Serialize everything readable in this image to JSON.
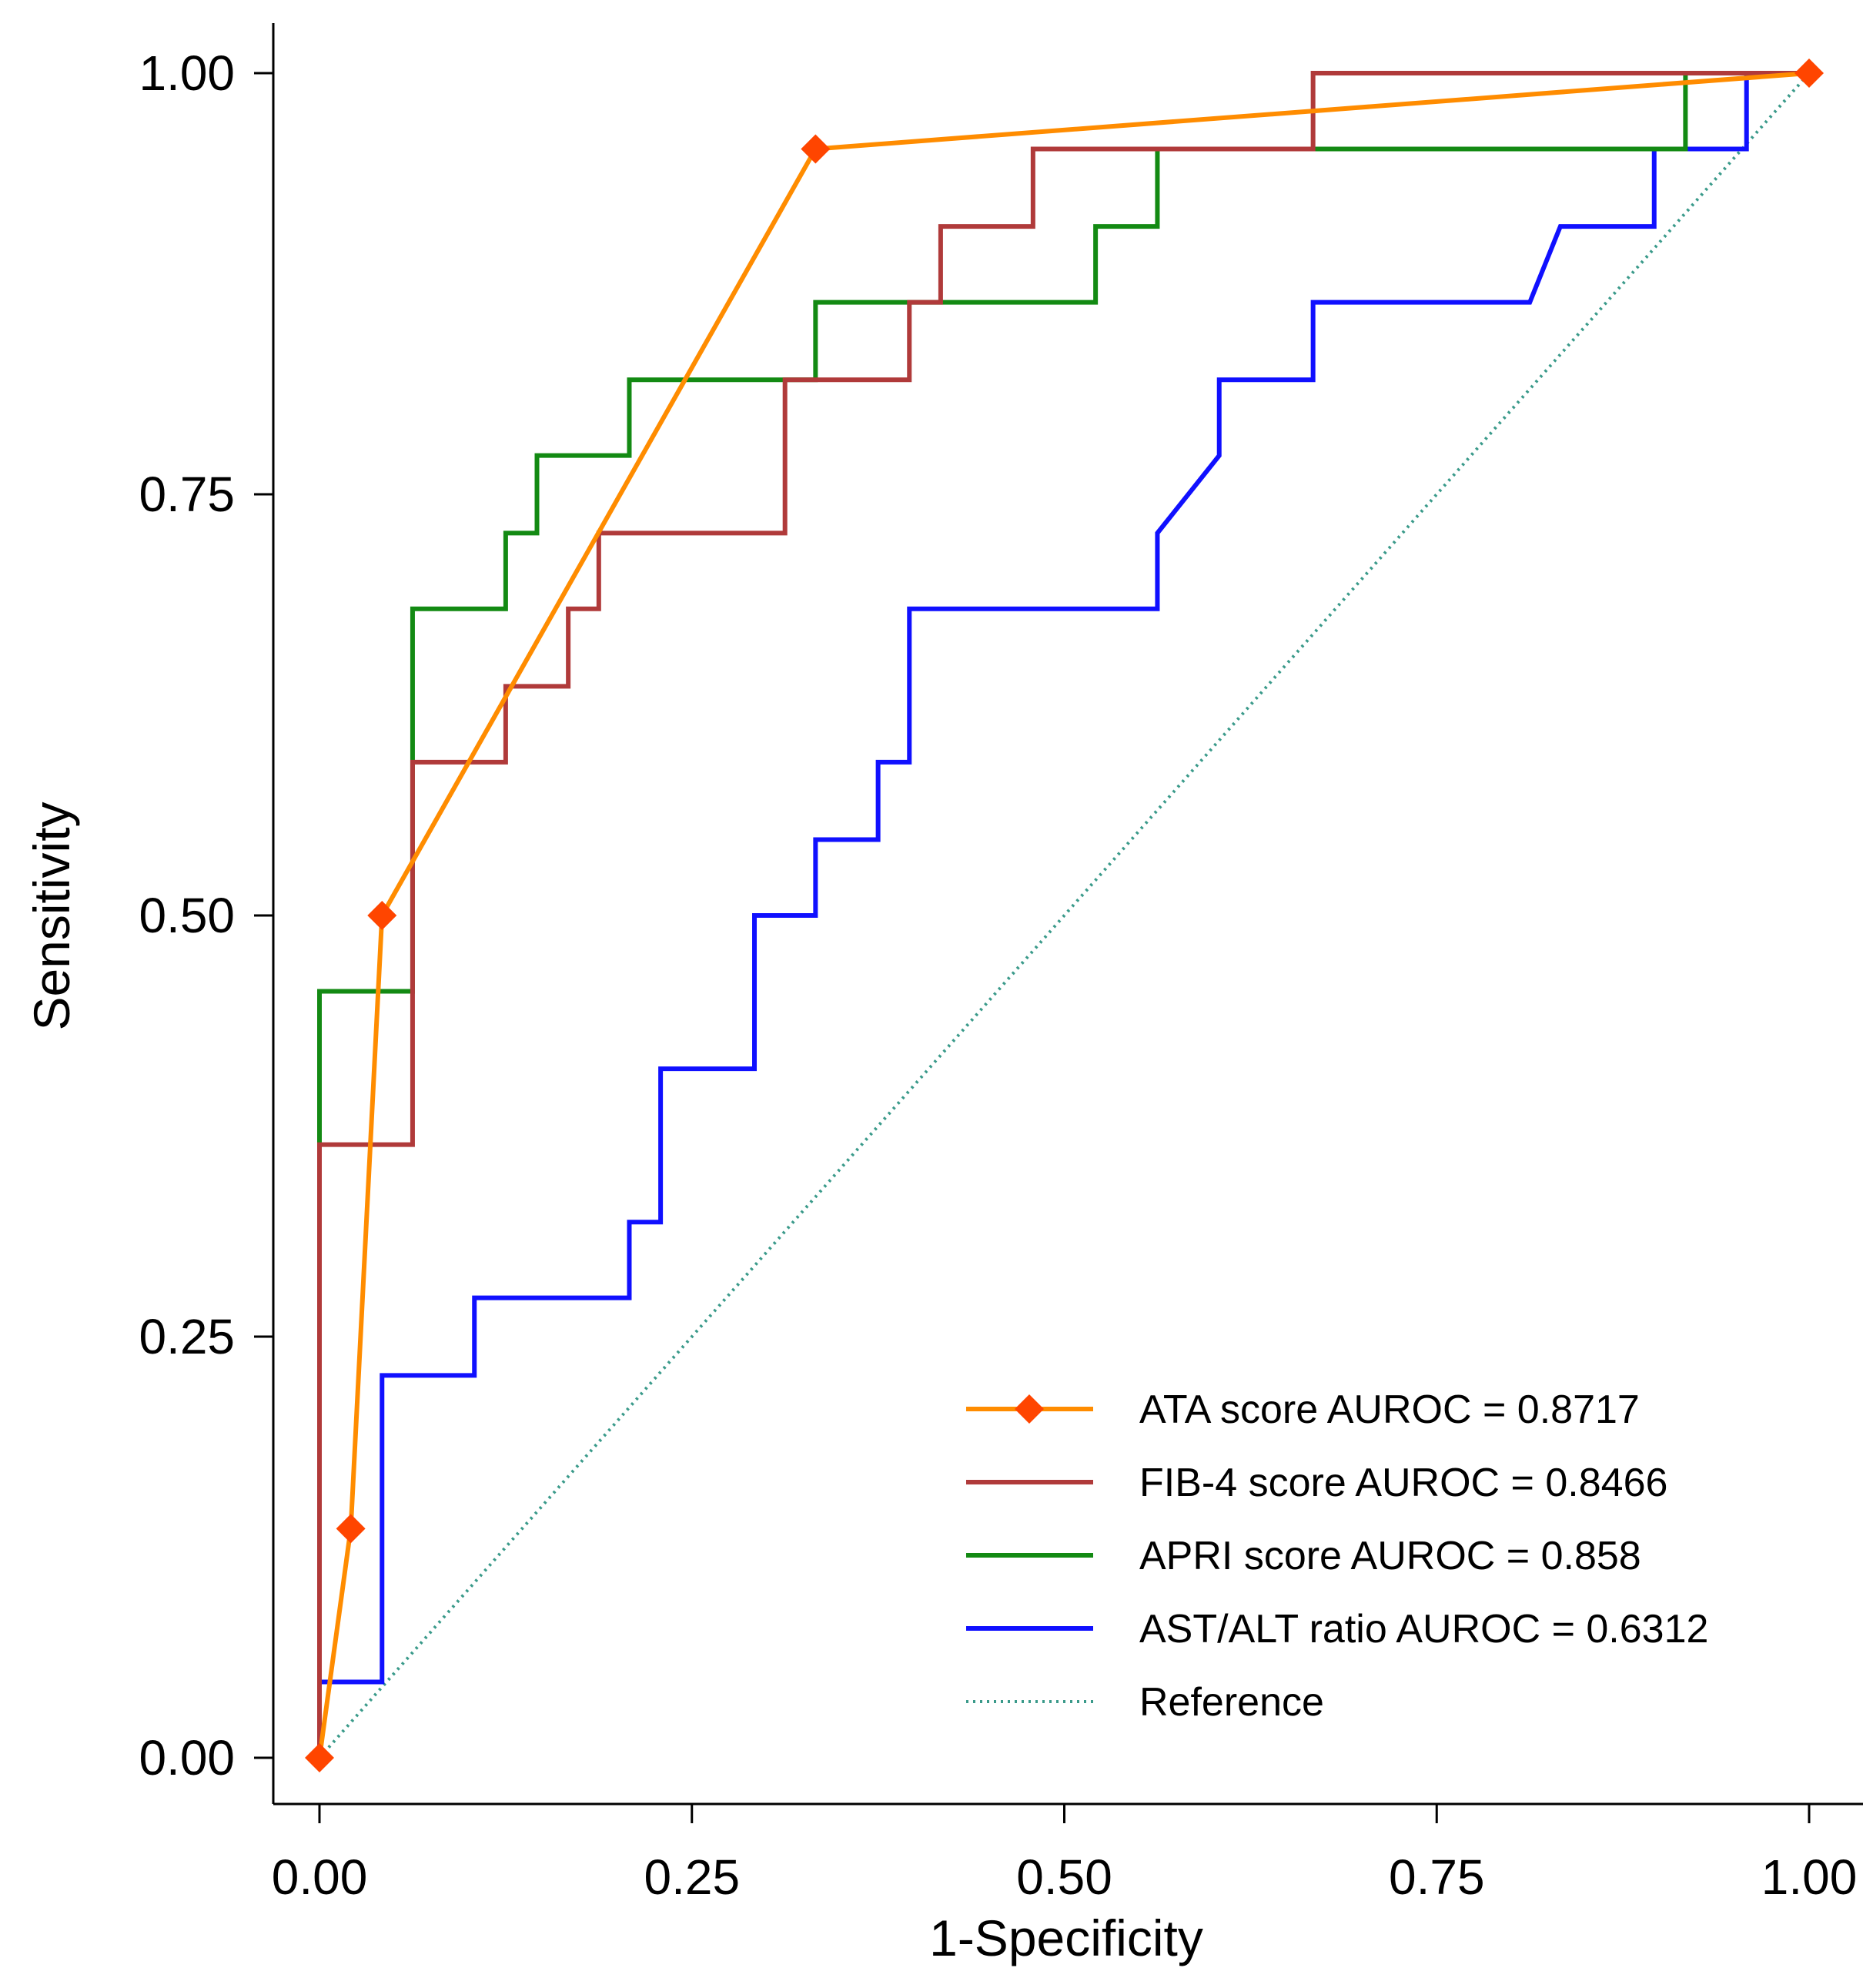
{
  "chart_data": {
    "type": "line",
    "title": "",
    "xlabel": "1-Specificity",
    "ylabel": "Sensitivity",
    "xlim": [
      0,
      1
    ],
    "ylim": [
      0,
      1
    ],
    "xticks": [
      "0.00",
      "0.25",
      "0.50",
      "0.75",
      "1.00"
    ],
    "yticks": [
      "0.00",
      "0.25",
      "0.50",
      "0.75",
      "1.00"
    ],
    "xtick_values": [
      0,
      0.25,
      0.5,
      0.75,
      1
    ],
    "ytick_values": [
      0,
      0.25,
      0.5,
      0.75,
      1
    ],
    "legend_position": "bottom-right",
    "series": [
      {
        "name": "ATA score AUROC = 0.8717",
        "color": "#ff8c00",
        "marker": "diamond",
        "marker_color": "#ff4500",
        "step": false,
        "points": [
          [
            0,
            0
          ],
          [
            0.021,
            0.136
          ],
          [
            0.042,
            0.5
          ],
          [
            0.333,
            0.955
          ],
          [
            1,
            1
          ]
        ]
      },
      {
        "name": "FIB-4 score AUROC = 0.8466",
        "color": "#b03a3a",
        "step": true,
        "points": [
          [
            0,
            0
          ],
          [
            0,
            0.364
          ],
          [
            0.0625,
            0.364
          ],
          [
            0.0625,
            0.591
          ],
          [
            0.125,
            0.591
          ],
          [
            0.125,
            0.636
          ],
          [
            0.167,
            0.636
          ],
          [
            0.167,
            0.682
          ],
          [
            0.1875,
            0.682
          ],
          [
            0.1875,
            0.727
          ],
          [
            0.3125,
            0.727
          ],
          [
            0.3125,
            0.818
          ],
          [
            0.396,
            0.818
          ],
          [
            0.396,
            0.864
          ],
          [
            0.417,
            0.864
          ],
          [
            0.417,
            0.909
          ],
          [
            0.479,
            0.909
          ],
          [
            0.479,
            0.955
          ],
          [
            0.667,
            0.955
          ],
          [
            0.667,
            1
          ],
          [
            1,
            1
          ]
        ]
      },
      {
        "name": "APRI score AUROC = 0.858",
        "color": "#138a13",
        "step": true,
        "points": [
          [
            0,
            0
          ],
          [
            0,
            0.455
          ],
          [
            0.0625,
            0.455
          ],
          [
            0.0625,
            0.682
          ],
          [
            0.125,
            0.682
          ],
          [
            0.125,
            0.727
          ],
          [
            0.146,
            0.727
          ],
          [
            0.146,
            0.773
          ],
          [
            0.208,
            0.773
          ],
          [
            0.208,
            0.818
          ],
          [
            0.333,
            0.818
          ],
          [
            0.333,
            0.864
          ],
          [
            0.521,
            0.864
          ],
          [
            0.521,
            0.909
          ],
          [
            0.5625,
            0.909
          ],
          [
            0.5625,
            0.955
          ],
          [
            0.917,
            0.955
          ],
          [
            0.917,
            1
          ],
          [
            1,
            1
          ]
        ]
      },
      {
        "name": "AST/ALT ratio AUROC = 0.6312",
        "color": "#1010ff",
        "step": false,
        "points": [
          [
            0,
            0
          ],
          [
            0,
            0.045
          ],
          [
            0.042,
            0.045
          ],
          [
            0.042,
            0.227
          ],
          [
            0.104,
            0.227
          ],
          [
            0.104,
            0.273
          ],
          [
            0.208,
            0.273
          ],
          [
            0.208,
            0.318
          ],
          [
            0.229,
            0.318
          ],
          [
            0.229,
            0.409
          ],
          [
            0.292,
            0.409
          ],
          [
            0.292,
            0.5
          ],
          [
            0.333,
            0.5
          ],
          [
            0.333,
            0.545
          ],
          [
            0.375,
            0.545
          ],
          [
            0.375,
            0.591
          ],
          [
            0.396,
            0.591
          ],
          [
            0.396,
            0.682
          ],
          [
            0.5625,
            0.682
          ],
          [
            0.5625,
            0.727
          ],
          [
            0.604,
            0.773
          ],
          [
            0.604,
            0.818
          ],
          [
            0.667,
            0.818
          ],
          [
            0.667,
            0.864
          ],
          [
            0.8125,
            0.864
          ],
          [
            0.833,
            0.909
          ],
          [
            0.896,
            0.909
          ],
          [
            0.896,
            0.955
          ],
          [
            0.958,
            0.955
          ],
          [
            0.958,
            1
          ],
          [
            1,
            1
          ]
        ]
      }
    ],
    "reference": {
      "name": "Reference",
      "color": "#3a9a8a",
      "points": [
        [
          0,
          0
        ],
        [
          1,
          1
        ]
      ]
    }
  }
}
